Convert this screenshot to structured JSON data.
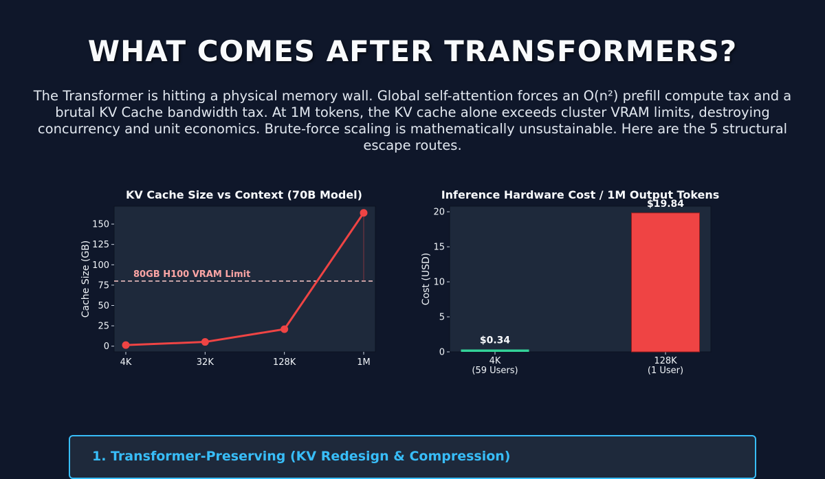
{
  "header": {
    "title": "WHAT COMES AFTER TRANSFORMERS?",
    "subtitle": "The Transformer is hitting a physical memory wall. Global self-attention forces an O(n²) prefill compute tax and a brutal KV Cache bandwidth tax. At 1M tokens, the KV cache alone exceeds cluster VRAM limits, destroying concurrency and unit economics. Brute-force scaling is mathematically unsustainable. Here are the 5 structural escape routes."
  },
  "colors": {
    "background": "#0f172a",
    "plot_background": "#1e293b",
    "line": "#ef4444",
    "bar_low": "#34d399",
    "bar_high": "#ef4444",
    "limit_line": "#fecaca",
    "accent": "#38bdf8"
  },
  "chart_data": [
    {
      "type": "line",
      "title": "KV Cache Size vs Context (70B Model)",
      "xlabel": "",
      "ylabel": "Cache Size (GB)",
      "categories": [
        "4K",
        "32K",
        "128K",
        "1M"
      ],
      "series": [
        {
          "name": "KV Cache Size",
          "values": [
            1.3,
            5.2,
            20.9,
            163.8
          ]
        }
      ],
      "ylim": [
        -7,
        172
      ],
      "yticks": [
        0,
        25,
        50,
        75,
        100,
        125,
        150
      ],
      "reference_line": {
        "value": 80,
        "label": "80GB H100 VRAM Limit",
        "style": "dashed"
      },
      "grid": false,
      "legend": "none"
    },
    {
      "type": "bar",
      "title": "Inference Hardware Cost / 1M Output Tokens",
      "xlabel": "",
      "ylabel": "Cost (USD)",
      "categories": [
        "4K\n(59 Users)",
        "128K\n(1 User)"
      ],
      "category_lines": [
        [
          "4K",
          "(59 Users)"
        ],
        [
          "128K",
          "(1 User)"
        ]
      ],
      "values": [
        0.34,
        19.84
      ],
      "data_labels": [
        "$0.34",
        "$19.84"
      ],
      "ylim": [
        0,
        20.8
      ],
      "yticks": [
        0,
        5,
        10,
        15,
        20
      ],
      "grid": false,
      "legend": "none"
    }
  ],
  "sections": [
    {
      "title": "1. Transformer-Preserving (KV Redesign & Compression)"
    }
  ]
}
